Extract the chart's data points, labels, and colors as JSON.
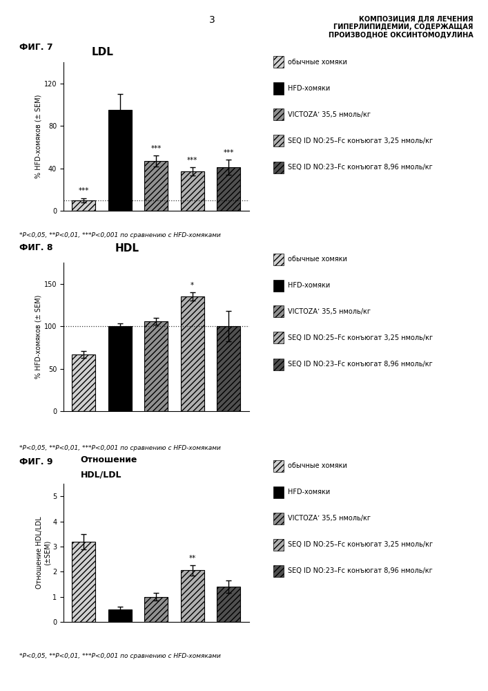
{
  "header_number": "3",
  "header_text": "КОМПОЗИЦИЯ ДЛЯ ЛЕЧЕНИЯ\nГИПЕРЛИПИДЕМИИ, СОДЕРЖАЩАЯ\nПРОИЗВОДНОЕ ОКСИНТОМОДУЛИНА",
  "fig7_label": "ФИГ. 7",
  "fig7_title": "LDL",
  "fig8_label": "ФИГ. 8",
  "fig8_title": "HDL",
  "fig9_label": "ФИГ. 9",
  "fig9_title_line1": "Отношение",
  "fig9_title_line2": "HDL/LDL",
  "legend_labels": [
    "обычные хомяки",
    "HFD-хомяки",
    "VICTOZAʼ 35,5 нмоль/кг",
    "SEQ ID NO:25–Fc конъюгат 3,25 нмоль/кг",
    "SEQ ID NO:23–Fc конъюгат 8,96 нмоль/кг"
  ],
  "bar_colors": [
    "#d0d0d0",
    "#000000",
    "#909090",
    "#b0b0b0",
    "#505050"
  ],
  "bar_hatches": [
    "////",
    "",
    "////",
    "////",
    "////"
  ],
  "legend_colors": [
    "#d0d0d0",
    "#000000",
    "#909090",
    "#b0b0b0",
    "#505050"
  ],
  "legend_hatches": [
    "////",
    "",
    "////",
    "////",
    "////"
  ],
  "fig7_values": [
    10,
    95,
    47,
    37,
    41
  ],
  "fig7_errors": [
    2,
    15,
    5,
    4,
    7
  ],
  "fig7_ylim": [
    0,
    140
  ],
  "fig7_yticks": [
    0,
    40,
    80,
    120
  ],
  "fig7_ylabel": "% HFD-хомяков (± SEM)",
  "fig7_hline": 10,
  "fig7_stars": [
    "***",
    "",
    "***",
    "***",
    "***"
  ],
  "fig8_values": [
    67,
    100,
    106,
    135,
    100
  ],
  "fig8_errors": [
    4,
    3,
    4,
    5,
    18
  ],
  "fig8_ylim": [
    0,
    175
  ],
  "fig8_yticks": [
    0,
    50,
    100,
    150
  ],
  "fig8_ylabel": "% HFD-хомяков (± SEM)",
  "fig8_hline": 100,
  "fig8_stars": [
    "",
    "",
    "",
    "*",
    ""
  ],
  "fig9_values": [
    3.2,
    0.5,
    1.0,
    2.05,
    1.4
  ],
  "fig9_errors": [
    0.3,
    0.1,
    0.15,
    0.2,
    0.25
  ],
  "fig9_ylim": [
    0,
    5.5
  ],
  "fig9_yticks": [
    0,
    1,
    2,
    3,
    4,
    5
  ],
  "fig9_ylabel": "Отношение HDL/LDL\n(±SEM)",
  "fig9_stars": [
    "",
    "",
    "",
    "**",
    ""
  ],
  "footnote": "*P<0,05, **P<0,01, ***P<0,001 по сравнению с HFD-хомяками",
  "background_color": "#ffffff"
}
